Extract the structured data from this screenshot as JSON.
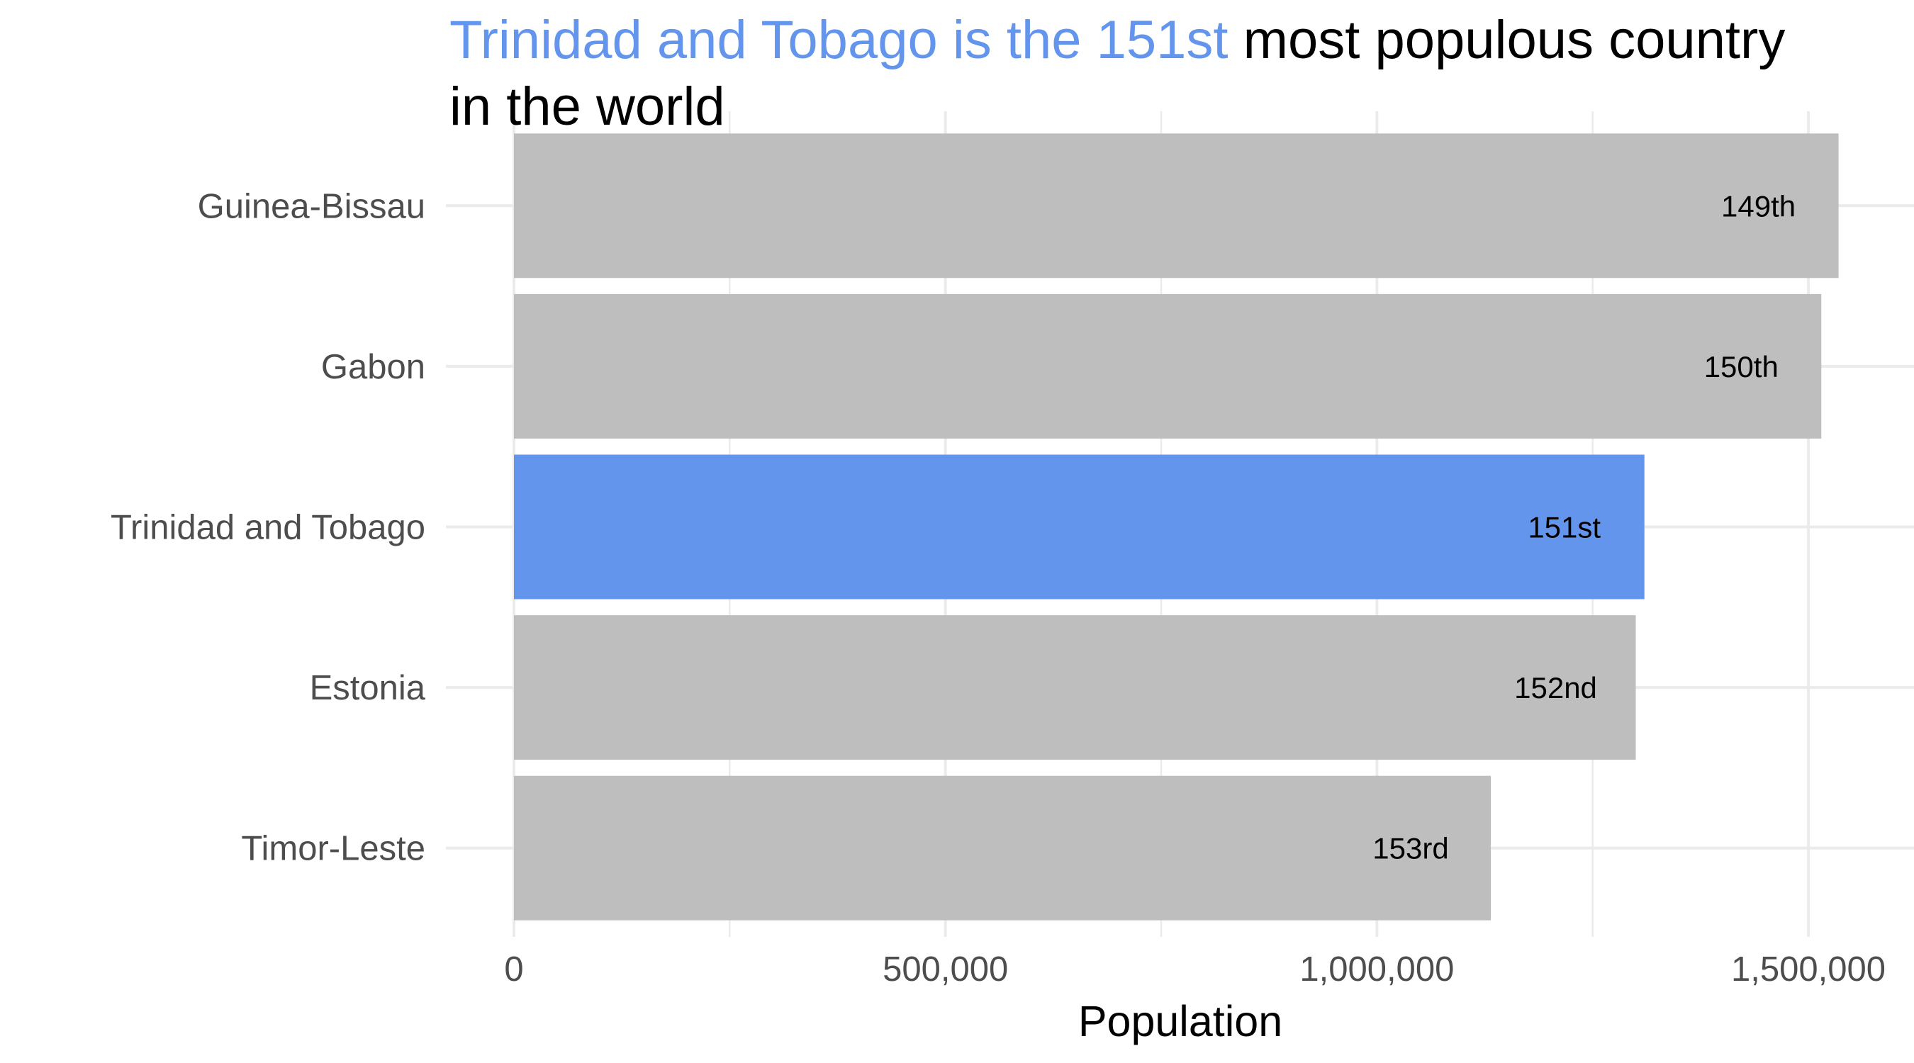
{
  "chart_data": {
    "type": "bar",
    "orientation": "horizontal",
    "title": {
      "highlight": "Trinidad and Tobago is the 151st",
      "line1_rest": " most populous country",
      "line2": "in the world"
    },
    "xlabel": "Population",
    "ylabel": "",
    "xlim": [
      0,
      1550000
    ],
    "x_ticks": [
      0,
      500000,
      1000000,
      1500000
    ],
    "x_tick_labels": [
      "0",
      "500,000",
      "1,000,000",
      "1,500,000"
    ],
    "x_minor_ticks": [
      250000,
      750000,
      1250000
    ],
    "grid": true,
    "legend": "none",
    "categories": [
      "Guinea-Bissau",
      "Gabon",
      "Trinidad and Tobago",
      "Estonia",
      "Timor-Leste"
    ],
    "values": [
      1535000,
      1515000,
      1310000,
      1300000,
      1132000
    ],
    "ranks": [
      "149th",
      "150th",
      "151st",
      "152nd",
      "153rd"
    ],
    "highlight_index": 2,
    "colors": {
      "highlight": "#6495ED",
      "default": "#BEBEBE",
      "grid": "#EBEBEB",
      "title": "#000000",
      "title_highlight": "#6495ED"
    }
  }
}
